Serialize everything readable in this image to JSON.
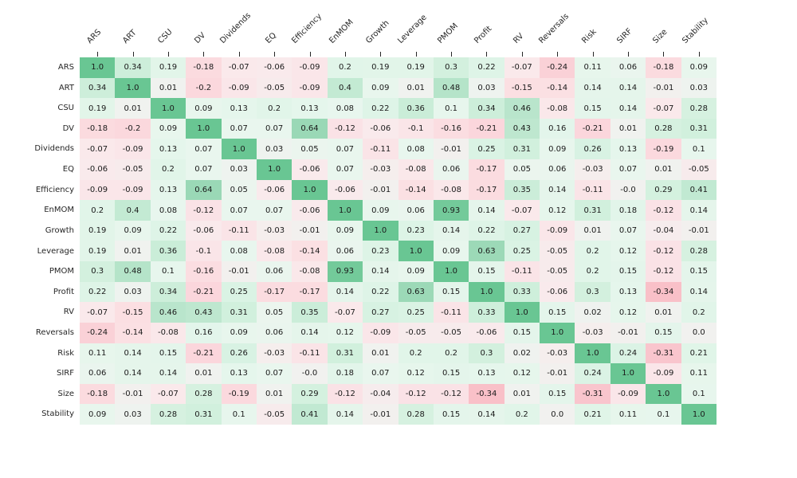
{
  "figure": {
    "background_color": "#ffffff",
    "text_color": "#262626"
  },
  "chart_data": {
    "type": "heatmap",
    "title": "",
    "xlabel": "",
    "ylabel": "",
    "legend": "none",
    "grid": false,
    "value_range": [
      -1,
      1
    ],
    "labels": [
      "ARS",
      "ART",
      "CSU",
      "DV",
      "Dividends",
      "EQ",
      "Efficiency",
      "EnMOM",
      "Growth",
      "Leverage",
      "PMOM",
      "Profit",
      "RV",
      "Reversals",
      "Risk",
      "SIRF",
      "Size",
      "Stability"
    ],
    "matrix": [
      [
        1.0,
        0.34,
        0.19,
        -0.18,
        -0.07,
        -0.06,
        -0.09,
        0.2,
        0.19,
        0.19,
        0.3,
        0.22,
        -0.07,
        -0.24,
        0.11,
        0.06,
        -0.18,
        0.09
      ],
      [
        0.34,
        1.0,
        0.01,
        -0.2,
        -0.09,
        -0.05,
        -0.09,
        0.4,
        0.09,
        0.01,
        0.48,
        0.03,
        -0.15,
        -0.14,
        0.14,
        0.14,
        -0.01,
        0.03
      ],
      [
        0.19,
        0.01,
        1.0,
        0.09,
        0.13,
        0.2,
        0.13,
        0.08,
        0.22,
        0.36,
        0.1,
        0.34,
        0.46,
        -0.08,
        0.15,
        0.14,
        -0.07,
        0.28
      ],
      [
        -0.18,
        -0.2,
        0.09,
        1.0,
        0.07,
        0.07,
        0.64,
        -0.12,
        -0.06,
        -0.1,
        -0.16,
        -0.21,
        0.43,
        0.16,
        -0.21,
        0.01,
        0.28,
        0.31
      ],
      [
        -0.07,
        -0.09,
        0.13,
        0.07,
        1.0,
        0.03,
        0.05,
        0.07,
        -0.11,
        0.08,
        -0.01,
        0.25,
        0.31,
        0.09,
        0.26,
        0.13,
        -0.19,
        0.1
      ],
      [
        -0.06,
        -0.05,
        0.2,
        0.07,
        0.03,
        1.0,
        -0.06,
        0.07,
        -0.03,
        -0.08,
        0.06,
        -0.17,
        0.05,
        0.06,
        -0.03,
        0.07,
        0.01,
        -0.05
      ],
      [
        -0.09,
        -0.09,
        0.13,
        0.64,
        0.05,
        -0.06,
        1.0,
        -0.06,
        -0.01,
        -0.14,
        -0.08,
        -0.17,
        0.35,
        0.14,
        -0.11,
        -0.0,
        0.29,
        0.41
      ],
      [
        0.2,
        0.4,
        0.08,
        -0.12,
        0.07,
        0.07,
        -0.06,
        1.0,
        0.09,
        0.06,
        0.93,
        0.14,
        -0.07,
        0.12,
        0.31,
        0.18,
        -0.12,
        0.14
      ],
      [
        0.19,
        0.09,
        0.22,
        -0.06,
        -0.11,
        -0.03,
        -0.01,
        0.09,
        1.0,
        0.23,
        0.14,
        0.22,
        0.27,
        -0.09,
        0.01,
        0.07,
        -0.04,
        -0.01
      ],
      [
        0.19,
        0.01,
        0.36,
        -0.1,
        0.08,
        -0.08,
        -0.14,
        0.06,
        0.23,
        1.0,
        0.09,
        0.63,
        0.25,
        -0.05,
        0.2,
        0.12,
        -0.12,
        0.28
      ],
      [
        0.3,
        0.48,
        0.1,
        -0.16,
        -0.01,
        0.06,
        -0.08,
        0.93,
        0.14,
        0.09,
        1.0,
        0.15,
        -0.11,
        -0.05,
        0.2,
        0.15,
        -0.12,
        0.15
      ],
      [
        0.22,
        0.03,
        0.34,
        -0.21,
        0.25,
        -0.17,
        -0.17,
        0.14,
        0.22,
        0.63,
        0.15,
        1.0,
        0.33,
        -0.06,
        0.3,
        0.13,
        -0.34,
        0.14
      ],
      [
        -0.07,
        -0.15,
        0.46,
        0.43,
        0.31,
        0.05,
        0.35,
        -0.07,
        0.27,
        0.25,
        -0.11,
        0.33,
        1.0,
        0.15,
        0.02,
        0.12,
        0.01,
        0.2
      ],
      [
        -0.24,
        -0.14,
        -0.08,
        0.16,
        0.09,
        0.06,
        0.14,
        0.12,
        -0.09,
        -0.05,
        -0.05,
        -0.06,
        0.15,
        1.0,
        -0.03,
        -0.01,
        0.15,
        0.0
      ],
      [
        0.11,
        0.14,
        0.15,
        -0.21,
        0.26,
        -0.03,
        -0.11,
        0.31,
        0.01,
        0.2,
        0.2,
        0.3,
        0.02,
        -0.03,
        1.0,
        0.24,
        -0.31,
        0.21
      ],
      [
        0.06,
        0.14,
        0.14,
        0.01,
        0.13,
        0.07,
        -0.0,
        0.18,
        0.07,
        0.12,
        0.15,
        0.13,
        0.12,
        -0.01,
        0.24,
        1.0,
        -0.09,
        0.11
      ],
      [
        -0.18,
        -0.01,
        -0.07,
        0.28,
        -0.19,
        0.01,
        0.29,
        -0.12,
        -0.04,
        -0.12,
        -0.12,
        -0.34,
        0.01,
        0.15,
        -0.31,
        -0.09,
        1.0,
        0.1
      ],
      [
        0.09,
        0.03,
        0.28,
        0.31,
        0.1,
        -0.05,
        0.41,
        0.14,
        -0.01,
        0.28,
        0.15,
        0.14,
        0.2,
        0.0,
        0.21,
        0.11,
        0.1,
        1.0
      ]
    ],
    "color_stops": [
      {
        "value": -1.0,
        "color": "#f67a8b"
      },
      {
        "value": -0.34,
        "color": "#f9c0c8"
      },
      {
        "value": -0.2,
        "color": "#fbd8dd"
      },
      {
        "value": -0.07,
        "color": "#fae9eb"
      },
      {
        "value": 0.0,
        "color": "#f1f1ef"
      },
      {
        "value": 0.07,
        "color": "#e9f6ee"
      },
      {
        "value": 0.2,
        "color": "#e1f5e9"
      },
      {
        "value": 0.34,
        "color": "#cdeeda"
      },
      {
        "value": 0.64,
        "color": "#9ad8b6"
      },
      {
        "value": 1.0,
        "color": "#69c693"
      }
    ]
  }
}
